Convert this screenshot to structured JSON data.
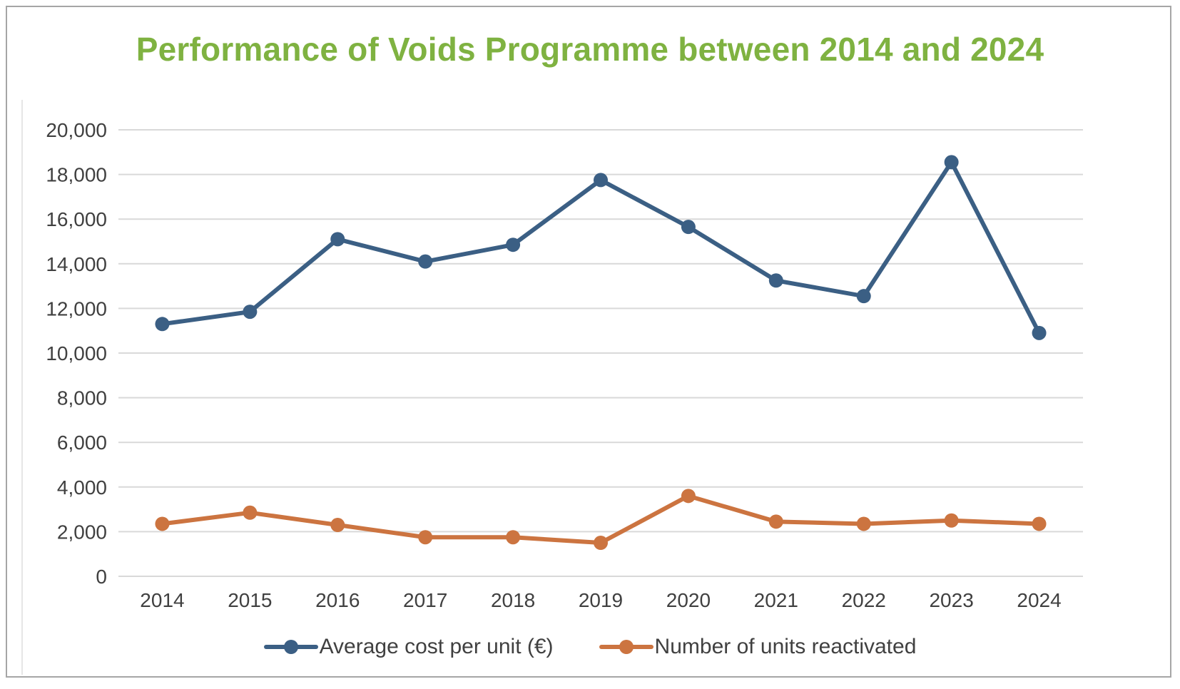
{
  "chart_data": {
    "type": "line",
    "title": "Performance of Voids Programme between 2014 and 2024",
    "x": [
      "2014",
      "2015",
      "2016",
      "2017",
      "2018",
      "2019",
      "2020",
      "2021",
      "2022",
      "2023",
      "2024"
    ],
    "ylim": [
      0,
      20000
    ],
    "yticks": [
      0,
      2000,
      4000,
      6000,
      8000,
      10000,
      12000,
      14000,
      16000,
      18000,
      20000
    ],
    "ytick_labels": [
      "0",
      "2,000",
      "4,000",
      "6,000",
      "8,000",
      "10,000",
      "12,000",
      "14,000",
      "16,000",
      "18,000",
      "20,000"
    ],
    "grid": true,
    "legend_position": "bottom",
    "series": [
      {
        "name": "Average cost per unit (€)",
        "color": "#3b5f84",
        "values": [
          11300,
          11850,
          15100,
          14100,
          14850,
          17750,
          15650,
          13250,
          12550,
          18550,
          10900
        ]
      },
      {
        "name": "Number of units reactivated",
        "color": "#cc7440",
        "values": [
          2350,
          2850,
          2300,
          1750,
          1750,
          1500,
          3600,
          2450,
          2350,
          2500,
          2350
        ]
      }
    ]
  }
}
